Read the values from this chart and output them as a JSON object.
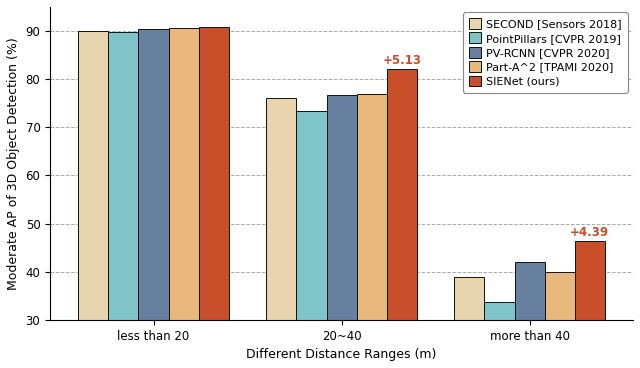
{
  "categories": [
    "less than 20",
    "20~40",
    "more than 40"
  ],
  "series": [
    {
      "name": "SECOND [Sensors 2018]",
      "color": "#E8D5B0",
      "values": [
        90.0,
        76.0,
        38.8
      ]
    },
    {
      "name": "PointPillars [CVPR 2019]",
      "color": "#7FC4C8",
      "values": [
        89.8,
        73.3,
        33.6
      ]
    },
    {
      "name": "PV-RCNN [CVPR 2020]",
      "color": "#6880A0",
      "values": [
        90.5,
        76.8,
        42.0
      ]
    },
    {
      "name": "Part-A^2 [TPAMI 2020]",
      "color": "#E8B87C",
      "values": [
        90.7,
        76.9,
        40.0
      ]
    },
    {
      "name": "SIENet (ours)",
      "color": "#C94E2A",
      "values": [
        90.8,
        82.1,
        46.39
      ]
    }
  ],
  "annotations": [
    {
      "group": 1,
      "series": 4,
      "text": "+5.13",
      "fontsize": 8.5
    },
    {
      "group": 2,
      "series": 4,
      "text": "+4.39",
      "fontsize": 8.5
    }
  ],
  "ylabel": "Moderate AP of 3D Object Detection (%)",
  "xlabel": "Different Distance Ranges (m)",
  "ymin": 30,
  "ymax": 95,
  "yticks": [
    30,
    40,
    50,
    60,
    70,
    80,
    90
  ],
  "legend_fontsize": 8.0,
  "axis_fontsize": 9.0,
  "tick_fontsize": 8.5,
  "bar_edge_color": "#111111",
  "bar_edge_width": 0.7,
  "background_color": "#ffffff",
  "grid_color": "#aaaaaa",
  "bar_width": 0.16,
  "annot_color": "#C94E2A"
}
